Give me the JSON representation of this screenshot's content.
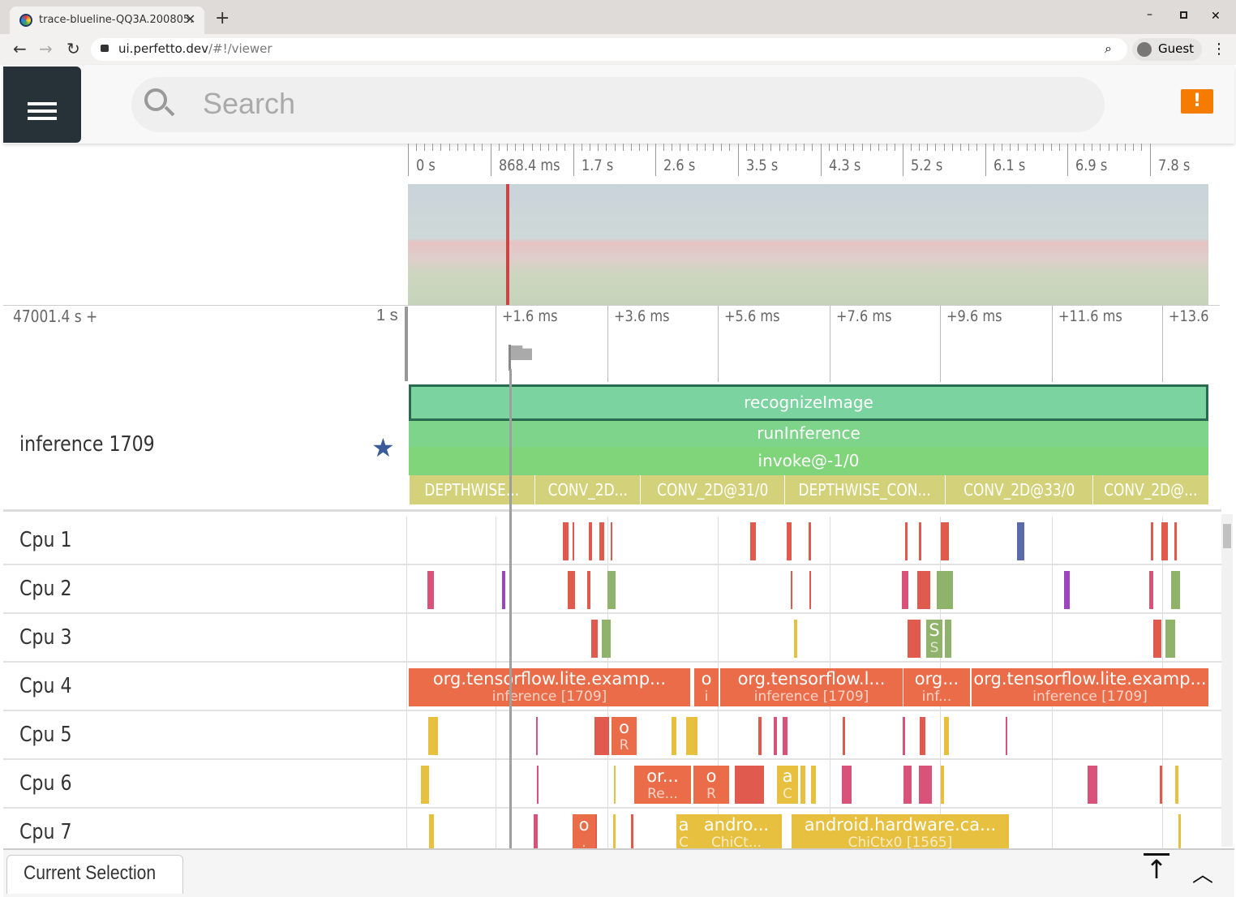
{
  "browser": {
    "tab_title": "trace-blueline-QQ3A.200805.",
    "url_host": "ui.perfetto.dev",
    "url_path": "/#!/viewer",
    "profile": "Guest"
  },
  "topbar": {
    "search_placeholder": "Search"
  },
  "overview": {
    "ticks": [
      "0 s",
      "868.4 ms",
      "1.7 s",
      "2.6 s",
      "3.5 s",
      "4.3 s",
      "5.2 s",
      "6.1 s",
      "6.9 s",
      "7.8 s"
    ]
  },
  "timeline": {
    "offset": "47001.4 s +",
    "scale": "1 s",
    "ticks": [
      "+1.6 ms",
      "+3.6 ms",
      "+5.6 ms",
      "+7.6 ms",
      "+9.6 ms",
      "+11.6 ms",
      "+13.6"
    ]
  },
  "inference_track": {
    "label": "inference 1709",
    "slices": {
      "recognize": "recognizeImage",
      "run": "runInference",
      "invoke": "invoke@-1/0"
    },
    "ops": [
      "DEPTHWISE...",
      "CONV_2D...",
      "CONV_2D@31/0",
      "DEPTHWISE_CON...",
      "CONV_2D@33/0",
      "CONV_2D@..."
    ]
  },
  "cpus": [
    "Cpu 1",
    "Cpu 2",
    "Cpu 3",
    "Cpu 4",
    "Cpu 5",
    "Cpu 6",
    "Cpu 7"
  ],
  "cpu_slices": {
    "cpu3": [
      {
        "t": "S",
        "s": "S"
      }
    ],
    "cpu4": [
      {
        "t": "org.tensorflow.lite.examp...",
        "s": "inference [1709]"
      },
      {
        "t": "o",
        "s": "i"
      },
      {
        "t": "org.tensorflow.l...",
        "s": "inference [1709]"
      },
      {
        "t": "org...",
        "s": "inf..."
      },
      {
        "t": "org.tensorflow.lite.examp...",
        "s": "inference [1709]"
      }
    ],
    "cpu5": [
      {
        "t": "o",
        "s": "R"
      }
    ],
    "cpu6": [
      {
        "t": "or...",
        "s": "Re..."
      },
      {
        "t": "o",
        "s": "R"
      },
      {
        "t": "a",
        "s": "C"
      }
    ],
    "cpu7": [
      {
        "t": "o",
        "s": "."
      },
      {
        "t": "a",
        "s": "C"
      },
      {
        "t": "andro...",
        "s": "ChiCt..."
      },
      {
        "t": "android.hardware.ca...",
        "s": "ChiCtx0 [1565]"
      }
    ]
  },
  "bottom": {
    "current_selection": "Current Selection"
  },
  "colors": {
    "recognize": "#7bd3a0",
    "run": "#7dd48a",
    "invoke": "#80d47a",
    "ops": "#d3d27b",
    "cpu4": "#eb6c48",
    "accent": "#f57c00"
  }
}
